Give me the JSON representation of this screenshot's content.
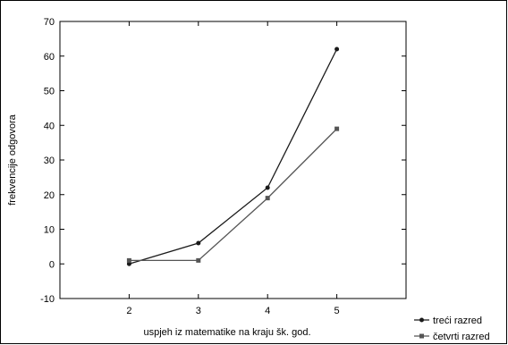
{
  "chart_data": {
    "type": "line",
    "xlabel": "uspjeh iz matematike na kraju šk. god.",
    "ylabel": "frekvencije odgovora",
    "x": [
      2,
      3,
      4,
      5
    ],
    "xlim": [
      1,
      6
    ],
    "ylim": [
      -10,
      70
    ],
    "y_ticks": [
      -10,
      0,
      10,
      20,
      30,
      40,
      50,
      60,
      70
    ],
    "x_ticks": [
      2,
      3,
      4,
      5
    ],
    "grid": false,
    "legend_position": "bottom-right",
    "series": [
      {
        "name": "treći razred",
        "values": [
          0,
          6,
          22,
          62
        ],
        "marker": "circle",
        "color": "#1a1a1a"
      },
      {
        "name": "četvrti razred",
        "values": [
          1,
          1,
          19,
          39
        ],
        "marker": "square",
        "color": "#555555"
      }
    ]
  }
}
